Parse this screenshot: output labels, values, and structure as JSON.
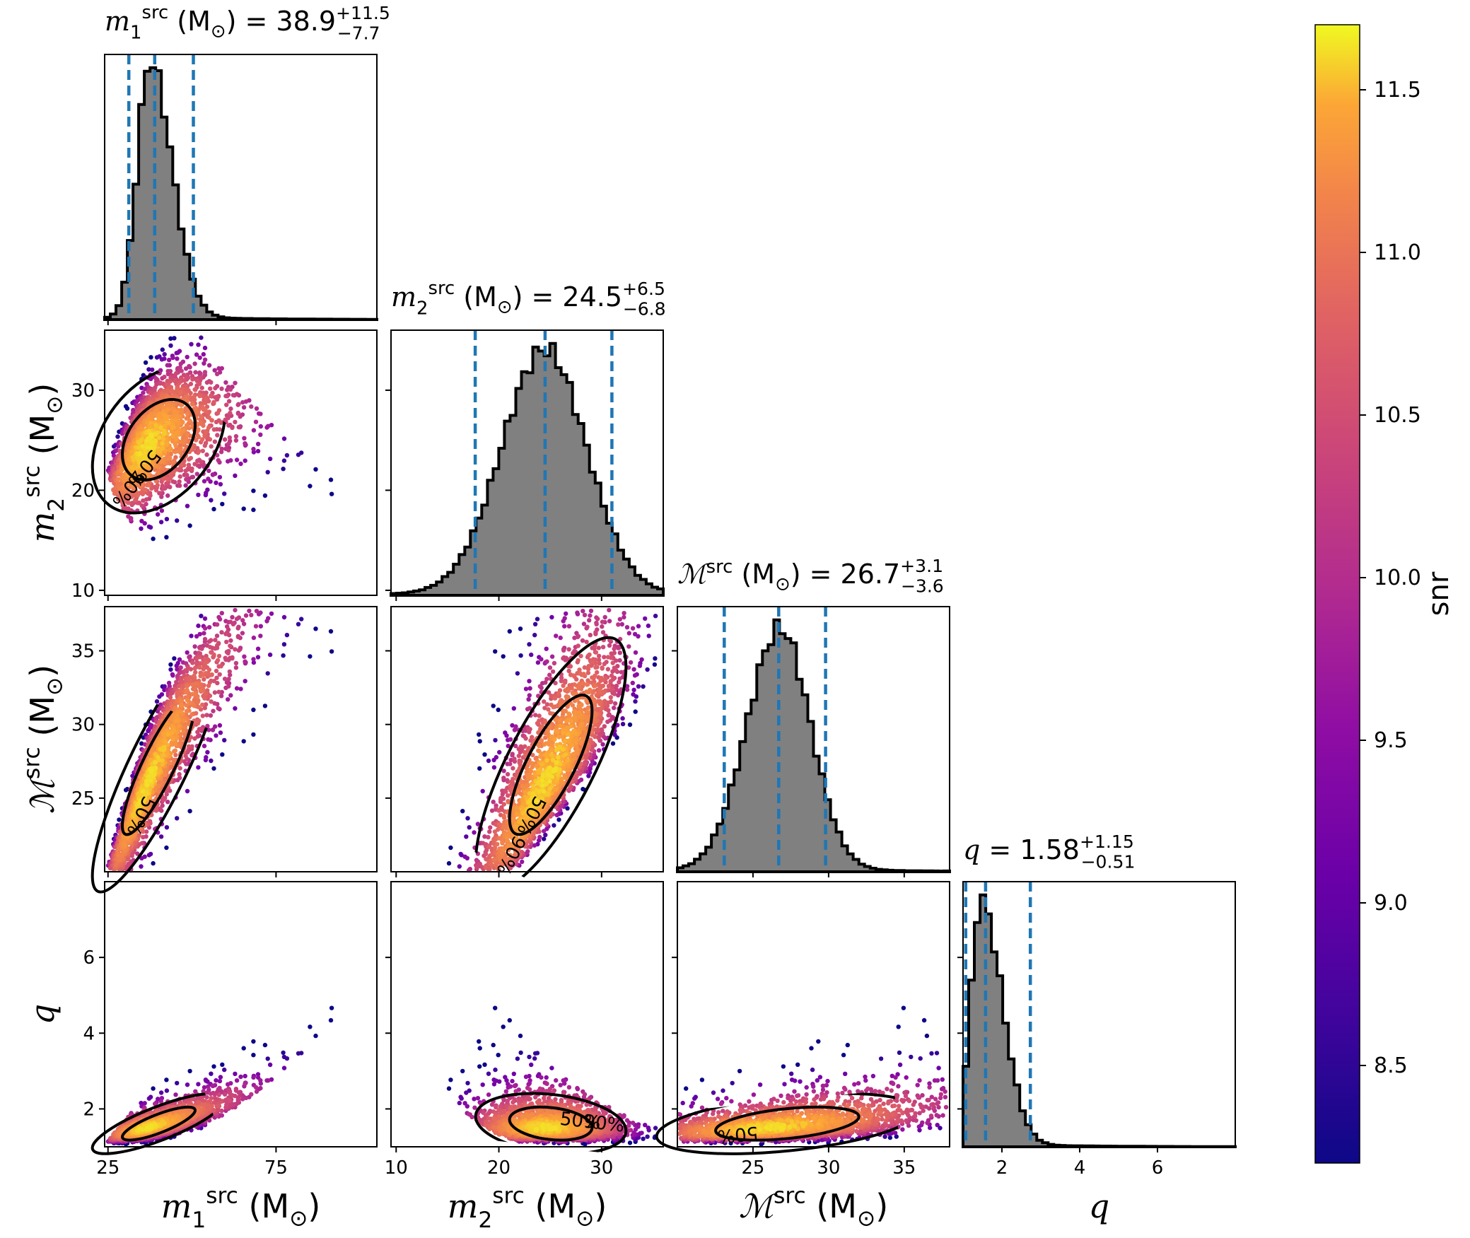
{
  "chart_data": {
    "type": "corner",
    "parameters": [
      {
        "key": "m1",
        "sym": "m",
        "sub": "1",
        "sup": "src",
        "unit": "(M",
        "unit_sub": "⊙",
        "unit_close": ")",
        "median": "38.9",
        "plus": "+11.5",
        "minus": "−7.7",
        "range": [
          24,
          105
        ],
        "ticks": [
          25,
          75
        ],
        "tick_labels": [
          "25",
          "75"
        ],
        "quantiles": [
          31.2,
          38.9,
          50.4
        ]
      },
      {
        "key": "m2",
        "sym": "m",
        "sub": "2",
        "sup": "src",
        "unit": "(M",
        "unit_sub": "⊙",
        "unit_close": ")",
        "median": "24.5",
        "plus": "+6.5",
        "minus": "−6.8",
        "range": [
          9.5,
          36
        ],
        "ticks": [
          10,
          20,
          30
        ],
        "tick_labels": [
          "10",
          "20",
          "30"
        ],
        "quantiles": [
          17.7,
          24.5,
          31.0
        ]
      },
      {
        "key": "mc",
        "sym": "ℳ",
        "sub": "",
        "sup": "src",
        "unit": "(M",
        "unit_sub": "⊙",
        "unit_close": ")",
        "median": "26.7",
        "plus": "+3.1",
        "minus": "−3.6",
        "range": [
          20,
          38
        ],
        "ticks": [
          25,
          30,
          35
        ],
        "tick_labels": [
          "25",
          "30",
          "35"
        ],
        "quantiles": [
          23.1,
          26.7,
          29.8
        ]
      },
      {
        "key": "q",
        "sym": "q",
        "sub": "",
        "sup": "",
        "unit": "",
        "unit_sub": "",
        "unit_close": "",
        "median": "1.58",
        "plus": "+1.15",
        "minus": "−0.51",
        "range": [
          1,
          8
        ],
        "ticks": [
          2,
          4,
          6
        ],
        "tick_labels": [
          "2",
          "4",
          "6"
        ],
        "quantiles": [
          1.07,
          1.58,
          2.73
        ]
      }
    ],
    "y_ticks": {
      "m2": {
        "ticks": [
          10,
          20,
          30
        ],
        "labels": [
          "10",
          "20",
          "30"
        ]
      },
      "mc": {
        "ticks": [
          25,
          30,
          35
        ],
        "labels": [
          "25",
          "30",
          "35"
        ]
      },
      "q": {
        "ticks": [
          2,
          4,
          6
        ],
        "labels": [
          "2",
          "4",
          "6"
        ]
      }
    },
    "hist_shapes": {
      "m1": {
        "mode": 37.5,
        "left_sd": 3.8,
        "right_sd": 6.5
      },
      "m2": {
        "mode": 24.5,
        "left_sd": 4.2,
        "right_sd": 4.0
      },
      "mc": {
        "mode": 26.8,
        "left_sd": 2.2,
        "right_sd": 2.0
      },
      "q": {
        "mode": 1.45,
        "left_sd": 0.25,
        "right_sd": 0.55
      }
    },
    "contour_labels": [
      "50%",
      "90%"
    ],
    "colorbar": {
      "label": "snr",
      "min": 8.2,
      "max": 11.7,
      "ticks": [
        8.5,
        9.0,
        9.5,
        10.0,
        10.5,
        11.0,
        11.5
      ],
      "tick_labels": [
        "8.5",
        "9.0",
        "9.5",
        "10.0",
        "10.5",
        "11.0",
        "11.5"
      ],
      "colormap": "plasma"
    },
    "colors": {
      "hist_fill": "#808080",
      "hist_edge": "#000000",
      "quantile_line": "#1f77b4",
      "contour": "#000000"
    }
  }
}
